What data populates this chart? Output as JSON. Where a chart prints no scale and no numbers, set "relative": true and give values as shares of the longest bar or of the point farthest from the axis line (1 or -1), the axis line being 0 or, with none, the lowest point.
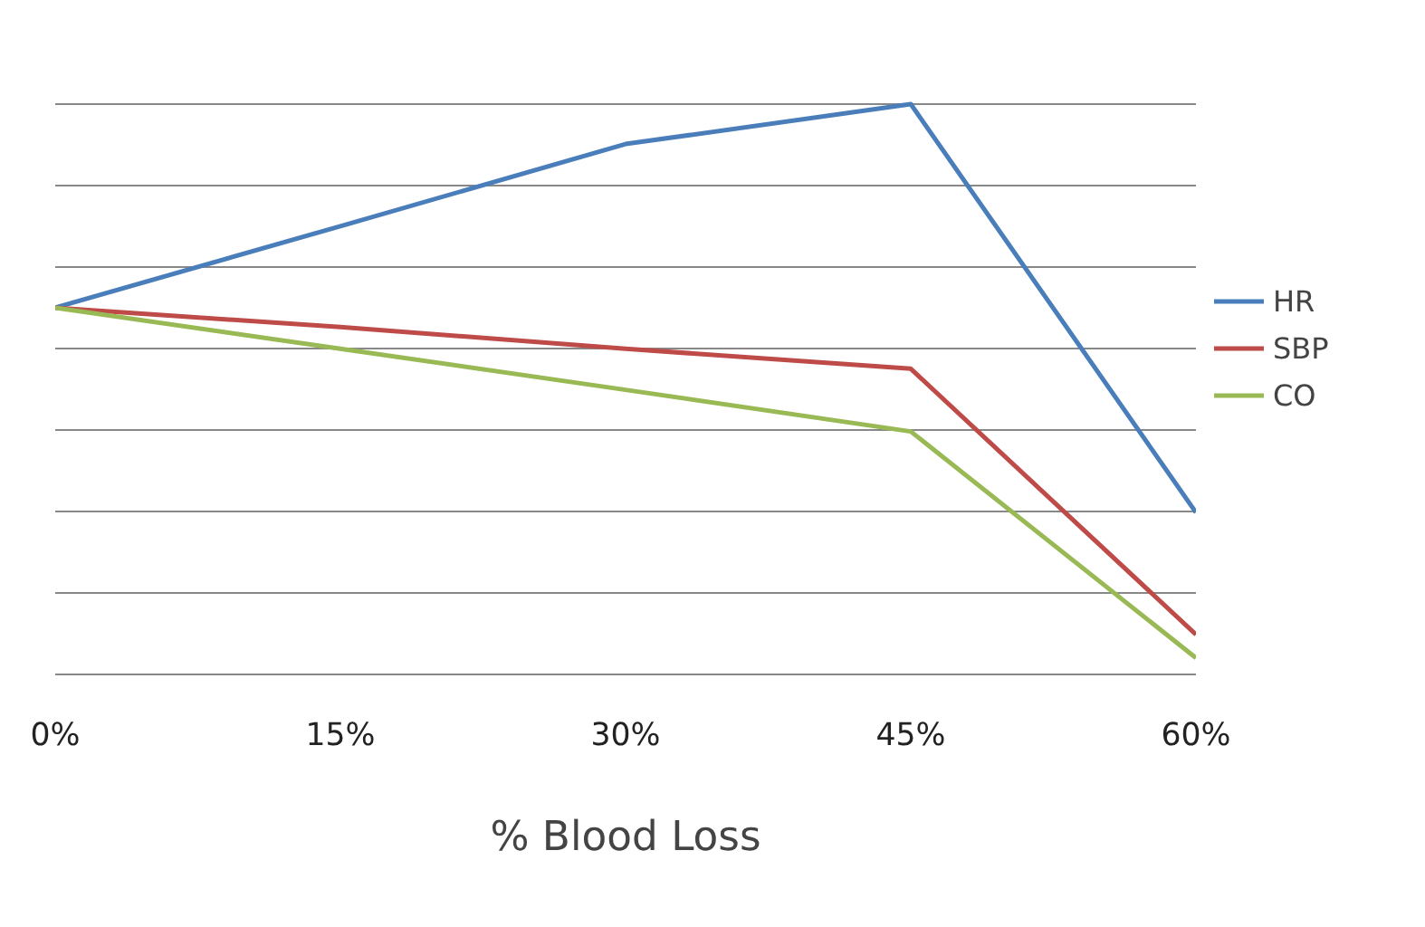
{
  "chart_data": {
    "type": "line",
    "relative": true,
    "xlabel": "% Blood Loss",
    "categories": [
      "0%",
      "15%",
      "30%",
      "45%",
      "60%"
    ],
    "series": [
      {
        "name": "HR",
        "color": "#4a7ebb",
        "values": [
          0.643,
          0.786,
          0.93,
          1.0,
          0.284
        ]
      },
      {
        "name": "SBP",
        "color": "#be4b48",
        "values": [
          0.643,
          0.609,
          0.571,
          0.536,
          0.07
        ]
      },
      {
        "name": "CO",
        "color": "#98b954",
        "values": [
          0.643,
          0.571,
          0.499,
          0.426,
          0.029
        ]
      }
    ],
    "grid": "y",
    "legend": "right",
    "marker": "none",
    "line_style": "solid"
  }
}
